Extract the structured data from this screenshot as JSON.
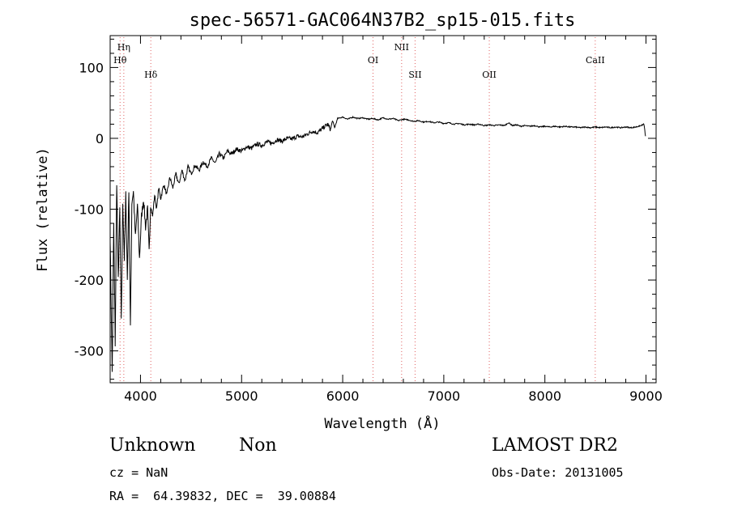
{
  "chart_data": {
    "type": "line",
    "title": "spec-56571-GAC064N37B2_sp15-015.fits",
    "xlabel": "Wavelength (Å)",
    "ylabel": "Flux (relative)",
    "xlim": [
      3700,
      9100
    ],
    "ylim": [
      -345,
      145
    ],
    "xticks": [
      4000,
      5000,
      6000,
      7000,
      8000,
      9000
    ],
    "yticks": [
      -300,
      -200,
      -100,
      0,
      100
    ],
    "grid": false,
    "series": [
      {
        "x": [
          3700,
          3720,
          3735,
          3750,
          3765,
          3780,
          3795,
          3810,
          3825,
          3840,
          3855,
          3870,
          3885,
          3900,
          3915,
          3930,
          3950,
          3970,
          3990,
          4010,
          4030,
          4050,
          4070,
          4085,
          4100,
          4120,
          4140,
          4160,
          4180,
          4200,
          4230,
          4260,
          4290,
          4320,
          4350,
          4380,
          4410,
          4440,
          4470,
          4500,
          4540,
          4580,
          4620,
          4660,
          4700,
          4740,
          4780,
          4820,
          4860,
          4900,
          4950,
          5000,
          5050,
          5100,
          5150,
          5200,
          5250,
          5300,
          5350,
          5400,
          5450,
          5500,
          5550,
          5600,
          5650,
          5700,
          5750,
          5800,
          5850,
          5880,
          5900,
          5920,
          5950,
          6000,
          6050,
          6100,
          6150,
          6200,
          6250,
          6300,
          6350,
          6400,
          6450,
          6500,
          6550,
          6600,
          6650,
          6700,
          6750,
          6800,
          6850,
          6900,
          6950,
          7000,
          7050,
          7100,
          7150,
          7200,
          7250,
          7300,
          7350,
          7400,
          7450,
          7500,
          7550,
          7600,
          7640,
          7680,
          7720,
          7760,
          7800,
          7850,
          7900,
          7950,
          8000,
          8050,
          8100,
          8150,
          8200,
          8250,
          8300,
          8350,
          8400,
          8450,
          8500,
          8550,
          8600,
          8650,
          8700,
          8750,
          8800,
          8850,
          8900,
          8950,
          8980,
          8995
        ],
        "y": [
          -140,
          -330,
          -120,
          -290,
          -60,
          -200,
          -100,
          -260,
          -90,
          -170,
          -80,
          -200,
          -70,
          -270,
          -90,
          -75,
          -140,
          -95,
          -170,
          -110,
          -85,
          -125,
          -100,
          -160,
          -95,
          -110,
          -80,
          -100,
          -70,
          -85,
          -65,
          -80,
          -55,
          -70,
          -50,
          -65,
          -45,
          -60,
          -40,
          -50,
          -38,
          -45,
          -33,
          -40,
          -28,
          -35,
          -22,
          -28,
          -18,
          -22,
          -15,
          -18,
          -12,
          -14,
          -8,
          -10,
          -5,
          -7,
          -2,
          -4,
          0,
          -1,
          3,
          2,
          6,
          10,
          8,
          14,
          20,
          12,
          25,
          15,
          28,
          30,
          27,
          30,
          28,
          29,
          27,
          28,
          26,
          29,
          27,
          28,
          25,
          27,
          26,
          24,
          25,
          23,
          24,
          22,
          23,
          21,
          22,
          20,
          21,
          19,
          20,
          19,
          20,
          18,
          19,
          18,
          19,
          18,
          22,
          18,
          19,
          17,
          18,
          17,
          18,
          16,
          17,
          16,
          17,
          16,
          17,
          16,
          16,
          15,
          16,
          15,
          16,
          15,
          16,
          15,
          16,
          15,
          16,
          15,
          16,
          18,
          20,
          3
        ]
      }
    ],
    "lines": [
      {
        "label": "Hη",
        "x": 3835,
        "row": 0
      },
      {
        "label": "Hθ",
        "x": 3798,
        "row": 1
      },
      {
        "label": "Hδ",
        "x": 4102,
        "row": 2
      },
      {
        "label": "OI",
        "x": 6300,
        "row": 1
      },
      {
        "label": "NII",
        "x": 6583,
        "row": 0
      },
      {
        "label": "SII",
        "x": 6716,
        "row": 2
      },
      {
        "label": "OII",
        "x": 7450,
        "row": 2
      },
      {
        "label": "CaII",
        "x": 8498,
        "row": 1
      }
    ]
  },
  "info": {
    "class": "Unknown",
    "subclass": "Non",
    "survey": "LAMOST DR2",
    "cz": "cz = NaN",
    "obs_date": "Obs-Date: 20131005",
    "coords": "RA =  64.39832, DEC =  39.00884"
  }
}
